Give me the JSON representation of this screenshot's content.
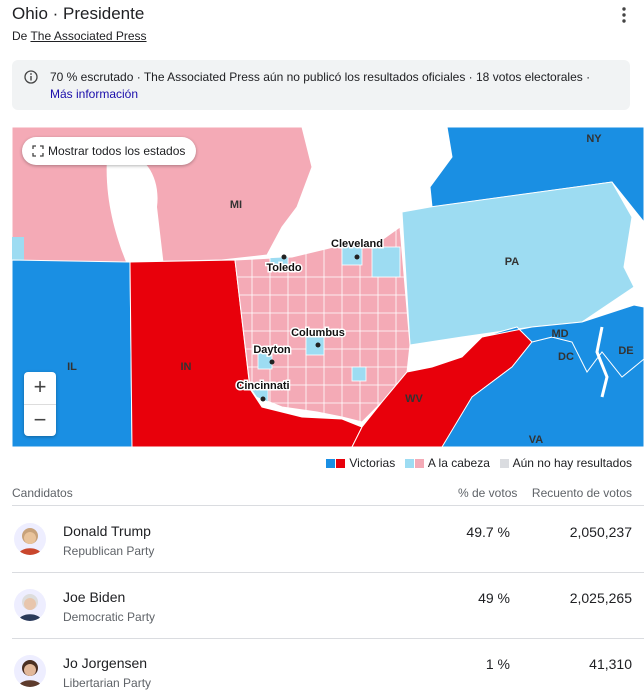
{
  "header": {
    "title": "Ohio · Presidente",
    "source_prefix": "De",
    "source": "The Associated Press"
  },
  "notice": {
    "text": "70 % escrutado · The Associated Press aún no publicó los resultados oficiales · 18 votos electorales ·",
    "link": "Más información"
  },
  "map": {
    "button": "Mostrar todos los estados",
    "zoom": [
      "+",
      "−"
    ],
    "states": [
      "MI",
      "NY",
      "PA",
      "IN",
      "IL",
      "WV",
      "MD",
      "DC",
      "DE",
      "VA"
    ],
    "cities": [
      "Cleveland",
      "Toledo",
      "Columbus",
      "Dayton",
      "Cincinnati"
    ]
  },
  "legend": [
    "Victorias",
    "A la cabeza",
    "Aún no hay resultados"
  ],
  "table": {
    "columns": [
      "Candidatos",
      "% de votos",
      "Recuento de votos"
    ],
    "rows": [
      {
        "name": "Donald Trump",
        "party": "Republican Party",
        "percent": "49.7 %",
        "votes": "2,050,237"
      },
      {
        "name": "Joe Biden",
        "party": "Democratic Party",
        "percent": "49 %",
        "votes": "2,025,265"
      },
      {
        "name": "Jo Jorgensen",
        "party": "Libertarian Party",
        "percent": "1 %",
        "votes": "41,310"
      }
    ]
  }
}
